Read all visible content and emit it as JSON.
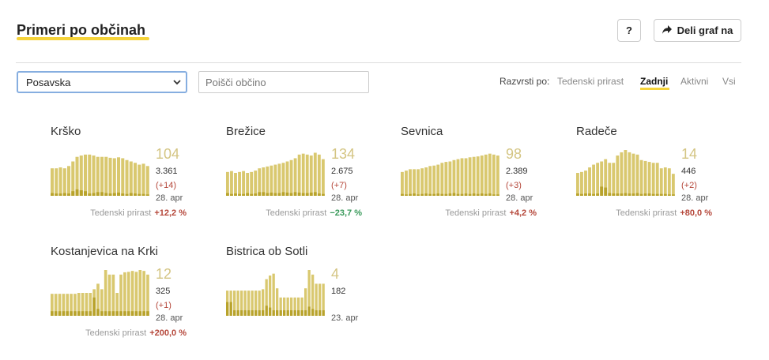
{
  "header": {
    "title": "Primeri po občinah",
    "help_label": "?",
    "share_label": "Deli graf na"
  },
  "controls": {
    "region_selected": "Posavska",
    "search_placeholder": "Poišči občino",
    "sort_label": "Razvrsti po:",
    "sort_options": [
      "Tedenski prirast",
      "Zadnji",
      "Aktivni",
      "Vsi"
    ],
    "sort_selected": "Zadnji"
  },
  "colors": {
    "accent": "#f5d33a",
    "bar": "#d9c86f",
    "bar_dark": "#b8a32c",
    "positive": "#b5473a",
    "negative": "#3a9a5b"
  },
  "municipalities": [
    {
      "name": "Krško",
      "latest": "104",
      "total": "3.361",
      "delta": "(+14)",
      "date": "28. apr",
      "growth_label": "Tedenski prirast",
      "growth": "+12,2 %",
      "growth_dir": "up",
      "bars": [
        60,
        60,
        62,
        60,
        65,
        75,
        85,
        88,
        90,
        90,
        88,
        85,
        85,
        85,
        83,
        82,
        84,
        82,
        78,
        75,
        72,
        68,
        70,
        65
      ],
      "dark": [
        6,
        5,
        5,
        6,
        5,
        10,
        14,
        12,
        10,
        5,
        6,
        8,
        8,
        6,
        5,
        6,
        7,
        5,
        4,
        6,
        5,
        4,
        4,
        3
      ]
    },
    {
      "name": "Brežice",
      "latest": "134",
      "total": "2.675",
      "delta": "(+7)",
      "date": "28. apr",
      "growth_label": "Tedenski prirast",
      "growth": "−23,7 %",
      "growth_dir": "down",
      "bars": [
        52,
        54,
        50,
        52,
        54,
        50,
        52,
        55,
        60,
        62,
        64,
        66,
        68,
        70,
        72,
        75,
        78,
        82,
        90,
        92,
        90,
        88,
        94,
        90,
        80
      ],
      "dark": [
        6,
        4,
        5,
        4,
        4,
        6,
        4,
        5,
        8,
        8,
        6,
        7,
        6,
        6,
        8,
        7,
        6,
        8,
        7,
        6,
        6,
        7,
        8,
        5,
        4
      ]
    },
    {
      "name": "Sevnica",
      "latest": "98",
      "total": "2.389",
      "delta": "(+3)",
      "date": "28. apr",
      "growth_label": "Tedenski prirast",
      "growth": "+4,2 %",
      "growth_dir": "up",
      "bars": [
        52,
        55,
        58,
        58,
        58,
        60,
        62,
        65,
        66,
        68,
        72,
        74,
        75,
        78,
        80,
        82,
        82,
        84,
        85,
        86,
        88,
        90,
        92,
        90,
        88
      ],
      "dark": [
        4,
        3,
        4,
        5,
        3,
        4,
        5,
        4,
        4,
        5,
        4,
        4,
        5,
        6,
        4,
        4,
        5,
        4,
        5,
        4,
        5,
        4,
        5,
        3,
        3
      ]
    },
    {
      "name": "Radeče",
      "latest": "14",
      "total": "446",
      "delta": "(+2)",
      "date": "28. apr",
      "growth_label": "Tedenski prirast",
      "growth": "+80,0 %",
      "growth_dir": "up",
      "bars": [
        50,
        52,
        55,
        62,
        68,
        72,
        75,
        80,
        72,
        72,
        88,
        95,
        100,
        95,
        92,
        90,
        78,
        76,
        74,
        72,
        72,
        60,
        62,
        60,
        48
      ],
      "dark": [
        5,
        4,
        5,
        5,
        4,
        5,
        20,
        18,
        6,
        5,
        5,
        5,
        6,
        5,
        5,
        6,
        4,
        5,
        5,
        4,
        4,
        4,
        4,
        3,
        3
      ]
    },
    {
      "name": "Kostanjevica na Krki",
      "latest": "12",
      "total": "325",
      "delta": "(+1)",
      "date": "28. apr",
      "growth_label": "Tedenski prirast",
      "growth": "+200,0 %",
      "growth_dir": "up",
      "bars": [
        48,
        48,
        48,
        48,
        48,
        48,
        48,
        50,
        50,
        50,
        50,
        58,
        70,
        58,
        100,
        90,
        90,
        50,
        90,
        95,
        96,
        98,
        96,
        100,
        98,
        90
      ],
      "dark": [
        10,
        10,
        10,
        10,
        10,
        10,
        10,
        10,
        10,
        10,
        10,
        40,
        15,
        10,
        10,
        10,
        10,
        10,
        10,
        10,
        10,
        10,
        10,
        10,
        10,
        10
      ]
    },
    {
      "name": "Bistrica ob Sotli",
      "latest": "4",
      "total": "182",
      "delta": "",
      "date": "23. apr",
      "growth_label": "",
      "growth": "",
      "growth_dir": "",
      "bars": [
        55,
        55,
        55,
        55,
        55,
        55,
        55,
        55,
        55,
        55,
        58,
        80,
        88,
        92,
        60,
        40,
        40,
        40,
        40,
        40,
        40,
        40,
        60,
        100,
        90,
        70,
        70,
        70
      ],
      "dark": [
        30,
        30,
        12,
        12,
        12,
        12,
        12,
        12,
        12,
        12,
        12,
        22,
        18,
        12,
        12,
        12,
        12,
        12,
        12,
        12,
        12,
        12,
        12,
        20,
        15,
        12,
        12,
        12
      ]
    }
  ]
}
